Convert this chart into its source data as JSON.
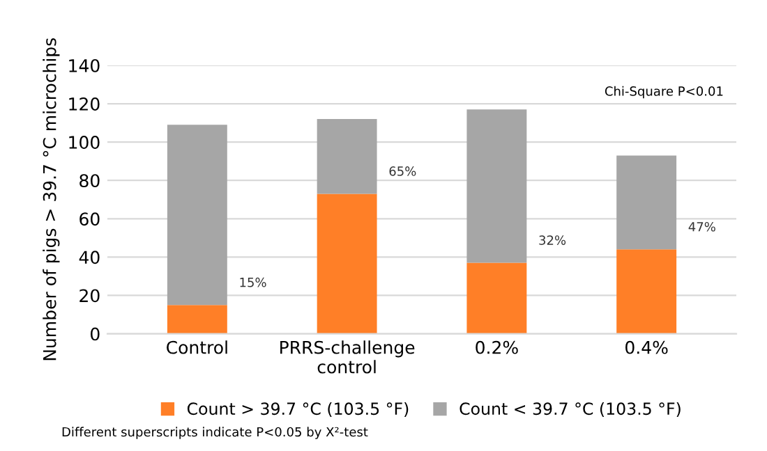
{
  "chart_data": {
    "type": "bar",
    "stacked": true,
    "ylabel": "Number of pigs > 39.7 °C microchips",
    "categories": [
      "Control",
      "PRRS-challenge control",
      "0.2%",
      "0.4%"
    ],
    "series": [
      {
        "name": "Count > 39.7 °C (103.5 °F)",
        "color": "#ff7f27",
        "values": [
          15,
          73,
          37,
          44
        ]
      },
      {
        "name": "Count < 39.7 °C (103.5 °F)",
        "color": "#a6a6a6",
        "values": [
          94,
          39,
          80,
          49
        ]
      }
    ],
    "ylim": [
      0,
      140
    ],
    "yticks": [
      0,
      20,
      40,
      60,
      80,
      100,
      120,
      140
    ],
    "grid": "y",
    "legend": "bottom",
    "annotations": [
      "Chi-Square P<0.01",
      "Different superscripts indicate P<0.05 by X²-test",
      "15%",
      "65%",
      "32%",
      "47%"
    ]
  }
}
